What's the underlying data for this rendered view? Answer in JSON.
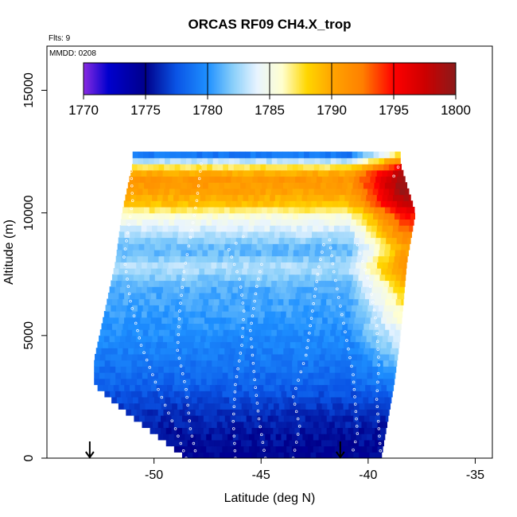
{
  "chart_data": {
    "type": "heatmap",
    "title": "ORCAS RF09 CH4.X_trop",
    "annotations": {
      "flights": "Flts: 9",
      "mmdd": "MMDD: 0208"
    },
    "xlabel": "Latitude (deg N)",
    "ylabel": "Altitude (m)",
    "xlim": [
      -55.0,
      -34.2
    ],
    "ylim": [
      0,
      16800
    ],
    "xticks": [
      -50,
      -45,
      -40,
      -35
    ],
    "yticks": [
      0,
      5000,
      10000,
      15000
    ],
    "colorbar": {
      "min": 1770,
      "max": 1800,
      "ticks": [
        1770,
        1775,
        1780,
        1785,
        1790,
        1795,
        1800
      ],
      "stops": [
        {
          "value": 1770,
          "color": "#8a2be2"
        },
        {
          "value": 1772,
          "color": "#0000cd"
        },
        {
          "value": 1775,
          "color": "#00008b"
        },
        {
          "value": 1777.5,
          "color": "#0a55e6"
        },
        {
          "value": 1780,
          "color": "#1e90ff"
        },
        {
          "value": 1782,
          "color": "#87cefa"
        },
        {
          "value": 1784,
          "color": "#e8f4ff"
        },
        {
          "value": 1786,
          "color": "#ffffd0"
        },
        {
          "value": 1788,
          "color": "#ffd700"
        },
        {
          "value": 1790,
          "color": "#ffa500"
        },
        {
          "value": 1792.5,
          "color": "#ff7f00"
        },
        {
          "value": 1795,
          "color": "#ff0000"
        },
        {
          "value": 1797.5,
          "color": "#cd0000"
        },
        {
          "value": 1800,
          "color": "#8b1a1a"
        }
      ]
    },
    "layers": [
      {
        "alt": 0,
        "value": 1775.0
      },
      {
        "alt": 1000,
        "value": 1775.5
      },
      {
        "alt": 2000,
        "value": 1776.5
      },
      {
        "alt": 3000,
        "value": 1778.0
      },
      {
        "alt": 4000,
        "value": 1779.0
      },
      {
        "alt": 5000,
        "value": 1779.8
      },
      {
        "alt": 6000,
        "value": 1780.5
      },
      {
        "alt": 7000,
        "value": 1781.0
      },
      {
        "alt": 7800,
        "value": 1783.0
      },
      {
        "alt": 8500,
        "value": 1781.0
      },
      {
        "alt": 9300,
        "value": 1783.5
      },
      {
        "alt": 10000,
        "value": 1786.0
      },
      {
        "alt": 10400,
        "value": 1789.0
      },
      {
        "alt": 11000,
        "value": 1790.5
      },
      {
        "alt": 11500,
        "value": 1791.0
      },
      {
        "alt": 12000,
        "value": 1786.0
      },
      {
        "alt": 12300,
        "value": 1779.0
      }
    ],
    "north_gradient": {
      "start_lat": -41.0,
      "end_lat": -38.5,
      "max_increase": 9
    },
    "domain": {
      "south_edge": [
        [
          0,
          -48.5
        ],
        [
          1000,
          -50.0
        ],
        [
          2000,
          -51.5
        ],
        [
          3000,
          -52.8
        ],
        [
          4000,
          -52.8
        ],
        [
          6000,
          -52.3
        ],
        [
          8000,
          -51.8
        ],
        [
          10000,
          -51.5
        ],
        [
          12000,
          -51.0
        ]
      ],
      "north_edge": [
        [
          0,
          -39.4
        ],
        [
          3000,
          -38.8
        ],
        [
          5000,
          -38.5
        ],
        [
          8000,
          -38.2
        ],
        [
          10000,
          -37.8
        ],
        [
          12000,
          -38.5
        ]
      ],
      "top_alt": 12300
    },
    "flight_tracks": [
      [
        [
          -48.5,
          0
        ],
        [
          -49.0,
          1200
        ],
        [
          -49.8,
          2800
        ],
        [
          -50.6,
          4600
        ],
        [
          -51.1,
          6400
        ],
        [
          -51.4,
          8200
        ],
        [
          -51.0,
          10500
        ],
        [
          -51.1,
          12300
        ]
      ],
      [
        [
          -47.8,
          12000
        ],
        [
          -48.0,
          10500
        ],
        [
          -48.3,
          9000
        ],
        [
          -48.6,
          7600
        ],
        [
          -48.8,
          6000
        ],
        [
          -48.9,
          4400
        ],
        [
          -48.5,
          2800
        ],
        [
          -48.3,
          1200
        ],
        [
          -48.0,
          0
        ]
      ],
      [
        [
          -46.2,
          0
        ],
        [
          -46.3,
          1500
        ],
        [
          -46.2,
          3000
        ],
        [
          -45.9,
          4600
        ],
        [
          -45.8,
          6000
        ],
        [
          -46.0,
          7300
        ],
        [
          -46.5,
          8500
        ],
        [
          -45.5,
          9300
        ]
      ],
      [
        [
          -44.8,
          0
        ],
        [
          -45.1,
          1600
        ],
        [
          -45.3,
          3200
        ],
        [
          -45.5,
          5200
        ],
        [
          -45.2,
          7000
        ],
        [
          -44.9,
          8200
        ]
      ],
      [
        [
          -43.5,
          0
        ],
        [
          -43.2,
          1300
        ],
        [
          -43.5,
          2500
        ],
        [
          -42.9,
          4200
        ],
        [
          -42.6,
          6000
        ],
        [
          -42.3,
          7800
        ],
        [
          -42.0,
          9000
        ]
      ],
      [
        [
          -41.8,
          8900
        ],
        [
          -41.6,
          7600
        ],
        [
          -41.3,
          6200
        ],
        [
          -41.0,
          4800
        ],
        [
          -40.7,
          3400
        ],
        [
          -40.6,
          2200
        ],
        [
          -40.5,
          1000
        ],
        [
          -40.8,
          0
        ]
      ],
      [
        [
          -40.5,
          8700
        ],
        [
          -39.9,
          7000
        ],
        [
          -39.6,
          5400
        ],
        [
          -39.5,
          3800
        ],
        [
          -39.6,
          2400
        ],
        [
          -39.4,
          0
        ]
      ],
      [
        [
          -38.8,
          11500
        ],
        [
          -38.2,
          12600
        ],
        [
          -37.7,
          12300
        ]
      ]
    ],
    "arrows": [
      -53.0,
      -41.3
    ]
  }
}
